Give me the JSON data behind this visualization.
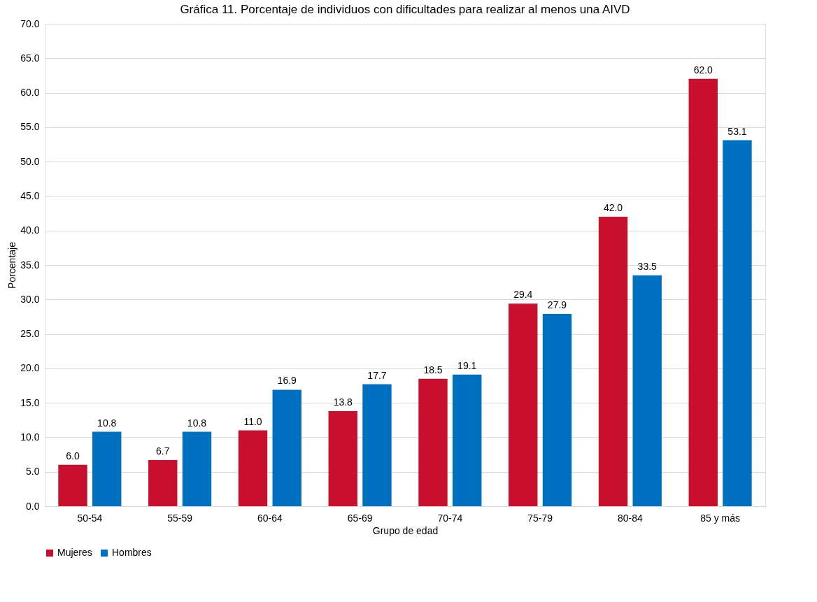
{
  "chart_data": {
    "type": "bar",
    "title": "Gráfica 11. Porcentaje de individuos con dificultades para realizar al menos una AIVD",
    "xlabel": "Grupo de edad",
    "ylabel": "Porcentaje",
    "categories": [
      "50-54",
      "55-59",
      "60-64",
      "65-69",
      "70-74",
      "75-79",
      "80-84",
      "85 y más"
    ],
    "series": [
      {
        "name": "Mujeres",
        "color": "#c8102e",
        "values": [
          6.0,
          6.7,
          11.0,
          13.8,
          18.5,
          29.4,
          42.0,
          62.0
        ],
        "value_labels": [
          "6.0",
          "6.7",
          "11.0",
          "13.8",
          "18.5",
          "29.4",
          "42.0",
          "62.0"
        ]
      },
      {
        "name": "Hombres",
        "color": "#0070c0",
        "values": [
          10.8,
          10.8,
          16.9,
          17.7,
          19.1,
          27.9,
          33.5,
          53.1
        ],
        "value_labels": [
          "10.8",
          "10.8",
          "16.9",
          "17.7",
          "19.1",
          "27.9",
          "33.5",
          "53.1"
        ]
      }
    ],
    "ylim": [
      0,
      70
    ],
    "yticks": [
      {
        "value": 0,
        "label": "0.0"
      },
      {
        "value": 5,
        "label": "5.0"
      },
      {
        "value": 10,
        "label": "10.0"
      },
      {
        "value": 15,
        "label": "15.0"
      },
      {
        "value": 20,
        "label": "20.0"
      },
      {
        "value": 25,
        "label": "25.0"
      },
      {
        "value": 30,
        "label": "30.0"
      },
      {
        "value": 35,
        "label": "35.0"
      },
      {
        "value": 40,
        "label": "40.0"
      },
      {
        "value": 45,
        "label": "45.0"
      },
      {
        "value": 50,
        "label": "50.0"
      },
      {
        "value": 55,
        "label": "55.0"
      },
      {
        "value": 60,
        "label": "60.0"
      },
      {
        "value": 65,
        "label": "65.0"
      },
      {
        "value": 70,
        "label": "70.0"
      }
    ],
    "grid": "y",
    "legend": "bottom"
  }
}
